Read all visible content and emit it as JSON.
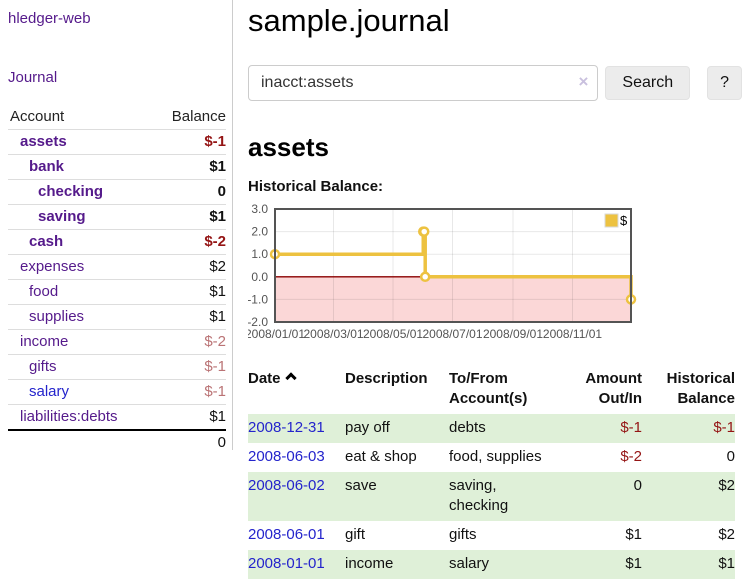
{
  "colors": {
    "link_purple": "#551a8b",
    "link_blue": "#2424cc",
    "negative_strong": "#941414",
    "negative_muted": "#ba7375",
    "row_stripe_green": "#dff0d8",
    "series_yellow": "#edc240"
  },
  "sidebar": {
    "app_title": "hledger-web",
    "journal_link": "Journal",
    "accounts_table": {
      "headers": [
        "Account",
        "Balance"
      ],
      "rows": [
        {
          "name": "assets",
          "balance": "$-1",
          "level": 1,
          "bold": true,
          "negative": "strong",
          "link": "purple"
        },
        {
          "name": "bank",
          "balance": "$1",
          "level": 2,
          "bold": true,
          "negative": null,
          "link": "purple"
        },
        {
          "name": "checking",
          "balance": "0",
          "level": 3,
          "bold": true,
          "negative": null,
          "link": "purple"
        },
        {
          "name": "saving",
          "balance": "$1",
          "level": 3,
          "bold": true,
          "negative": null,
          "link": "purple"
        },
        {
          "name": "cash",
          "balance": "$-2",
          "level": 2,
          "bold": true,
          "negative": "strong",
          "link": "purple"
        },
        {
          "name": "expenses",
          "balance": "$2",
          "level": 1,
          "bold": false,
          "negative": null,
          "link": "purple"
        },
        {
          "name": "food",
          "balance": "$1",
          "level": 2,
          "bold": false,
          "negative": null,
          "link": "purple"
        },
        {
          "name": "supplies",
          "balance": "$1",
          "level": 2,
          "bold": false,
          "negative": null,
          "link": "purple"
        },
        {
          "name": "income",
          "balance": "$-2",
          "level": 1,
          "bold": false,
          "negative": "muted",
          "link": "purple"
        },
        {
          "name": "gifts",
          "balance": "$-1",
          "level": 2,
          "bold": false,
          "negative": "muted",
          "link": "purple"
        },
        {
          "name": "salary",
          "balance": "$-1",
          "level": 2,
          "bold": false,
          "negative": "muted",
          "link": "blue"
        },
        {
          "name": "liabilities:debts",
          "balance": "$1",
          "level": 1,
          "bold": false,
          "negative": null,
          "link": "purple"
        }
      ],
      "total": "0"
    }
  },
  "header": {
    "title": "sample.journal"
  },
  "search": {
    "query": "inacct:assets",
    "clear_icon": "×",
    "search_label": "Search",
    "help_label": "?"
  },
  "register": {
    "heading": "assets",
    "chart_title": "Historical Balance:"
  },
  "chart_data": {
    "type": "line",
    "step": true,
    "title": "Historical Balance:",
    "series": [
      {
        "name": "$",
        "color": "#edc240",
        "points": [
          [
            "2008-01-01",
            1
          ],
          [
            "2008-06-01",
            2
          ],
          [
            "2008-06-02",
            2
          ],
          [
            "2008-06-03",
            0
          ],
          [
            "2008-12-31",
            -1
          ]
        ]
      }
    ],
    "x_range": [
      "2008-01-01",
      "2008-12-31"
    ],
    "x_ticks": [
      {
        "v": "2008-01-01",
        "label": "2008/01/01"
      },
      {
        "v": "2008-03-01",
        "label": "2008/03/01"
      },
      {
        "v": "2008-05-01",
        "label": "2008/05/01"
      },
      {
        "v": "2008-07-01",
        "label": "2008/07/01"
      },
      {
        "v": "2008-09-01",
        "label": "2008/09/01"
      },
      {
        "v": "2008-11-01",
        "label": "2008/11/01"
      }
    ],
    "ylim": [
      -2,
      3
    ],
    "y_ticks": [
      3,
      2,
      1,
      0,
      -1,
      -2
    ],
    "y_tick_labels": [
      "3.0",
      "2.0",
      "1.0",
      "0.0",
      "-1.0",
      "-2.0"
    ],
    "grid": true,
    "legend": {
      "label": "$",
      "position": "top-right"
    },
    "negative_region_color": "#fbd7d7",
    "zero_line_color": "#8b0000",
    "border_color": "#545454",
    "tick_label_color": "#545454"
  },
  "transactions": {
    "headers": [
      "Date",
      "Description",
      "To/From\nAccount(s)",
      "Amount\nOut/In",
      "Historical\nBalance"
    ],
    "rows": [
      {
        "date": "2008-12-31",
        "description": "pay off",
        "accounts": "debts",
        "amount": "$-1",
        "amount_negative": true,
        "balance": "$-1",
        "balance_negative": true
      },
      {
        "date": "2008-06-03",
        "description": "eat & shop",
        "accounts": "food, supplies",
        "amount": "$-2",
        "amount_negative": true,
        "balance": "0",
        "balance_negative": false
      },
      {
        "date": "2008-06-02",
        "description": "save",
        "accounts": "saving,\nchecking",
        "amount": "0",
        "amount_negative": false,
        "balance": "$2",
        "balance_negative": false
      },
      {
        "date": "2008-06-01",
        "description": "gift",
        "accounts": "gifts",
        "amount": "$1",
        "amount_negative": false,
        "balance": "$2",
        "balance_negative": false
      },
      {
        "date": "2008-01-01",
        "description": "income",
        "accounts": "salary",
        "amount": "$1",
        "amount_negative": false,
        "balance": "$1",
        "balance_negative": false
      }
    ]
  }
}
